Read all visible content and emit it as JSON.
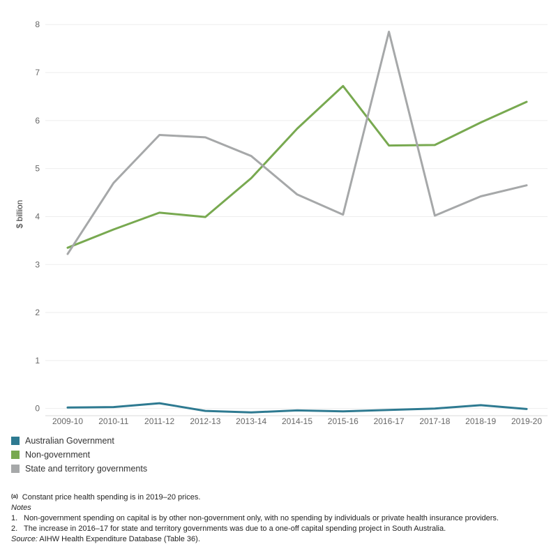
{
  "chart_data": {
    "type": "line",
    "ylabel": "$ billion",
    "xlabel": "",
    "ylim": [
      -0.15,
      8.25
    ],
    "yticks": [
      "0",
      "1",
      "2",
      "3",
      "4",
      "5",
      "6",
      "7",
      "8"
    ],
    "categories": [
      "2009-10",
      "2010-11",
      "2011-12",
      "2012-13",
      "2013-14",
      "2014-15",
      "2015-16",
      "2016-17",
      "2017-18",
      "2018-19",
      "2019-20"
    ],
    "series": [
      {
        "name": "Australian Government",
        "color": "#2e7a91",
        "values": [
          0.02,
          0.03,
          0.11,
          -0.05,
          -0.08,
          -0.04,
          -0.06,
          -0.03,
          0.0,
          0.07,
          -0.01
        ]
      },
      {
        "name": "Non-government",
        "color": "#78a950",
        "values": [
          3.35,
          3.73,
          4.08,
          3.99,
          4.8,
          5.83,
          6.72,
          5.48,
          5.49,
          5.96,
          6.39
        ]
      },
      {
        "name": "State and territory governments",
        "color": "#a6a8a9",
        "values": [
          3.22,
          4.7,
          5.7,
          5.65,
          5.26,
          4.46,
          4.04,
          7.85,
          4.02,
          4.42,
          4.65
        ]
      }
    ],
    "grid": true
  },
  "legend": [
    {
      "label": "Australian Government",
      "color": "#2e7a91"
    },
    {
      "label": "Non-government",
      "color": "#78a950"
    },
    {
      "label": "State and territory governments",
      "color": "#a6a8a9"
    }
  ],
  "footnotes": {
    "a_marker": "(a)",
    "a_text": "Constant price health spending is in 2019–20 prices.",
    "notes_heading": "Notes",
    "note1_num": "1.",
    "note1": "Non-government spending on capital is by other non-government only, with no spending by individuals or private health insurance providers.",
    "note2_num": "2.",
    "note2": "The increase in 2016–17 for state and territory governments was due to a one-off capital spending project in South Australia.",
    "source_label": "Source:",
    "source_text": " AIHW Health Expenditure Database (Table 36)."
  }
}
